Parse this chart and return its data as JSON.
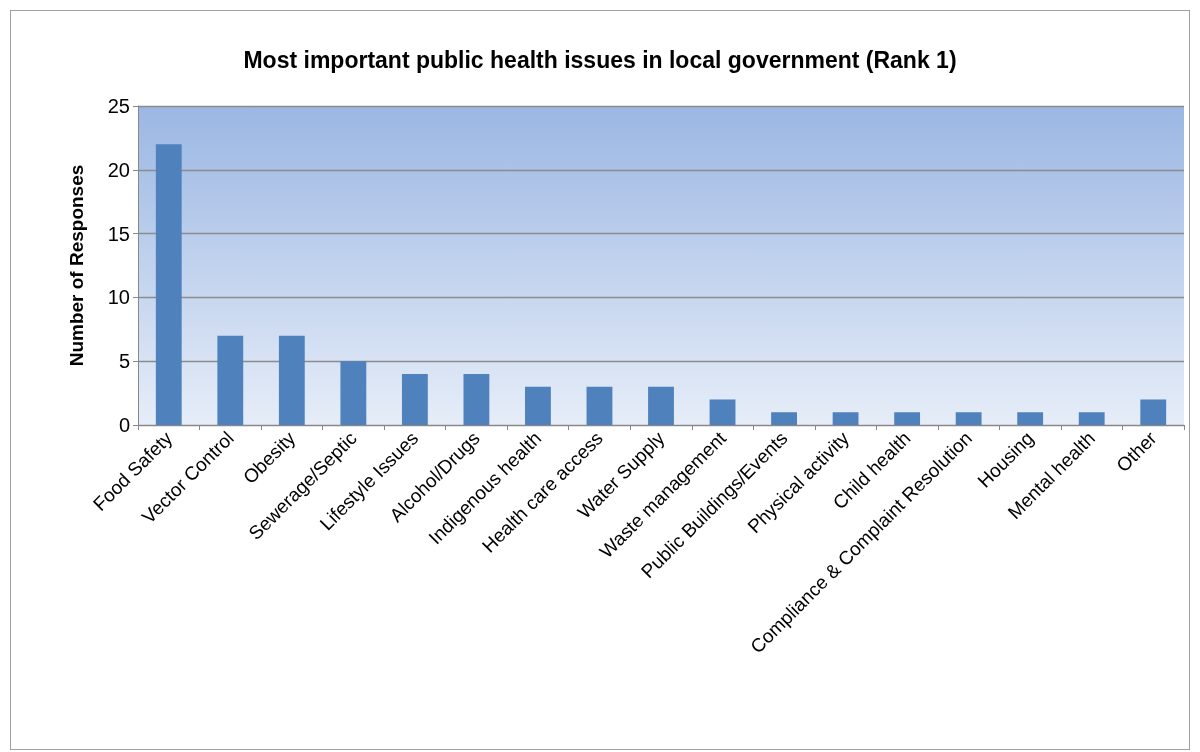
{
  "chart_data": {
    "type": "bar",
    "title": "Most important public health issues in local government (Rank 1)",
    "ylabel": "Number of Responses",
    "categories": [
      "Food Safety",
      "Vector Control",
      "Obesity",
      "Sewerage/Septic",
      "Lifestyle Issues",
      "Alcohol/Drugs",
      "Indigenous health",
      "Health care access",
      "Water Supply",
      "Waste management",
      "Public Buildings/Events",
      "Physical activity",
      "Child health",
      "Compliance & Complaint Resolution",
      "Housing",
      "Mental health",
      "Other"
    ],
    "values": [
      22,
      7,
      7,
      5,
      4,
      4,
      3,
      3,
      3,
      2,
      1,
      1,
      1,
      1,
      1,
      1,
      2
    ],
    "color": "#4f81bd",
    "ylim": [
      0,
      25
    ],
    "yticks": [
      0,
      5,
      10,
      15,
      20,
      25
    ],
    "grid": "y"
  }
}
